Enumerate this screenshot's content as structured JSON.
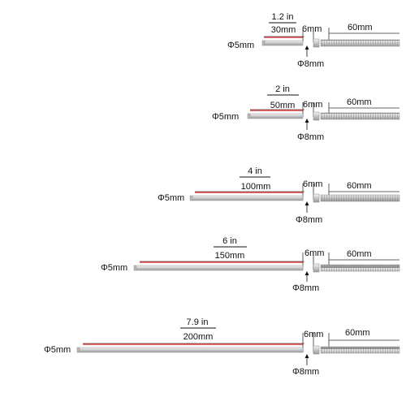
{
  "variants": [
    {
      "length_in": "1.2 in",
      "length_mm": "30mm",
      "diameter_probe": "Φ5mm",
      "collar_len": "6mm",
      "diameter_collar": "Φ8mm",
      "spring_len": "60mm"
    },
    {
      "length_in": "2 in",
      "length_mm": "50mm",
      "diameter_probe": "Φ5mm",
      "collar_len": "6mm",
      "diameter_collar": "Φ8mm",
      "spring_len": "60mm"
    },
    {
      "length_in": "4 in",
      "length_mm": "100mm",
      "diameter_probe": "Φ5mm",
      "collar_len": "6mm",
      "diameter_collar": "Φ8mm",
      "spring_len": "60mm"
    },
    {
      "length_in": "6 in",
      "length_mm": "150mm",
      "diameter_probe": "Φ5mm",
      "collar_len": "6mm",
      "diameter_collar": "Φ8mm",
      "spring_len": "60mm"
    },
    {
      "length_in": "7.9 in",
      "length_mm": "200mm",
      "diameter_probe": "Φ5mm",
      "collar_len": "6mm",
      "diameter_collar": "Φ8mm",
      "spring_len": "60mm"
    }
  ],
  "colors": {
    "measure_line": "#d62020",
    "probe": "#c9c9c9",
    "probe_edge": "#8a8a8a",
    "ink": "#111111"
  }
}
